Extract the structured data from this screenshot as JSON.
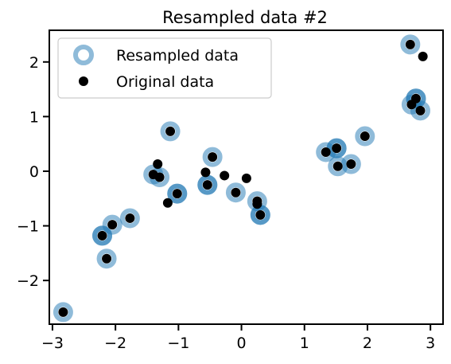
{
  "chart_data": {
    "type": "scatter",
    "title": "Resampled data #2",
    "xlabel": "",
    "ylabel": "",
    "xlim": [
      -3.05,
      3.2
    ],
    "ylim": [
      -2.8,
      2.58
    ],
    "xticks": [
      -3,
      -2,
      -1,
      0,
      1,
      2,
      3
    ],
    "yticks": [
      -2,
      -1,
      0,
      1,
      2
    ],
    "xtick_labels": [
      "−3",
      "−2",
      "−1",
      "0",
      "1",
      "2",
      "3"
    ],
    "ytick_labels": [
      "−2",
      "−1",
      "0",
      "1",
      "2"
    ],
    "grid": false,
    "legend_position": "upper-left",
    "series": [
      {
        "name": "Resampled data",
        "marker": "hollow-ring",
        "color": "#1f77b4",
        "alpha": 0.5,
        "points": [
          {
            "x": -2.83,
            "y": -2.58,
            "count": 1
          },
          {
            "x": -2.21,
            "y": -1.18,
            "count": 2
          },
          {
            "x": -2.14,
            "y": -1.6,
            "count": 1
          },
          {
            "x": -2.05,
            "y": -0.98,
            "count": 1
          },
          {
            "x": -1.77,
            "y": -0.86,
            "count": 1
          },
          {
            "x": -1.4,
            "y": -0.06,
            "count": 1
          },
          {
            "x": -1.3,
            "y": -0.11,
            "count": 1
          },
          {
            "x": -1.13,
            "y": 0.73,
            "count": 1
          },
          {
            "x": -1.02,
            "y": -0.41,
            "count": 2
          },
          {
            "x": -0.54,
            "y": -0.25,
            "count": 2
          },
          {
            "x": -0.46,
            "y": 0.26,
            "count": 1
          },
          {
            "x": -0.09,
            "y": -0.39,
            "count": 1
          },
          {
            "x": 0.25,
            "y": -0.55,
            "count": 1
          },
          {
            "x": 0.3,
            "y": -0.8,
            "count": 2
          },
          {
            "x": 1.34,
            "y": 0.35,
            "count": 1
          },
          {
            "x": 1.51,
            "y": 0.42,
            "count": 2
          },
          {
            "x": 1.53,
            "y": 0.09,
            "count": 1
          },
          {
            "x": 1.74,
            "y": 0.13,
            "count": 1
          },
          {
            "x": 1.96,
            "y": 0.64,
            "count": 1
          },
          {
            "x": 2.68,
            "y": 2.32,
            "count": 1
          },
          {
            "x": 2.7,
            "y": 1.22,
            "count": 1
          },
          {
            "x": 2.77,
            "y": 1.33,
            "count": 2
          },
          {
            "x": 2.84,
            "y": 1.11,
            "count": 1
          }
        ]
      },
      {
        "name": "Original data",
        "marker": "filled-dot",
        "color": "#000000",
        "points": [
          {
            "x": -2.83,
            "y": -2.58
          },
          {
            "x": -2.21,
            "y": -1.18
          },
          {
            "x": -2.14,
            "y": -1.6
          },
          {
            "x": -2.05,
            "y": -0.98
          },
          {
            "x": -1.77,
            "y": -0.86
          },
          {
            "x": -1.4,
            "y": -0.06
          },
          {
            "x": -1.33,
            "y": 0.13
          },
          {
            "x": -1.3,
            "y": -0.11
          },
          {
            "x": -1.17,
            "y": -0.58
          },
          {
            "x": -1.13,
            "y": 0.73
          },
          {
            "x": -1.02,
            "y": -0.41
          },
          {
            "x": -0.57,
            "y": -0.02
          },
          {
            "x": -0.54,
            "y": -0.25
          },
          {
            "x": -0.46,
            "y": 0.26
          },
          {
            "x": -0.27,
            "y": -0.08
          },
          {
            "x": -0.09,
            "y": -0.39
          },
          {
            "x": 0.08,
            "y": -0.13
          },
          {
            "x": 0.25,
            "y": -0.6
          },
          {
            "x": 0.25,
            "y": -0.55
          },
          {
            "x": 0.3,
            "y": -0.8
          },
          {
            "x": 1.34,
            "y": 0.35
          },
          {
            "x": 1.51,
            "y": 0.42
          },
          {
            "x": 1.53,
            "y": 0.09
          },
          {
            "x": 1.74,
            "y": 0.13
          },
          {
            "x": 1.96,
            "y": 0.64
          },
          {
            "x": 2.68,
            "y": 2.32
          },
          {
            "x": 2.7,
            "y": 1.22
          },
          {
            "x": 2.77,
            "y": 1.33
          },
          {
            "x": 2.84,
            "y": 1.11
          },
          {
            "x": 2.88,
            "y": 2.1
          }
        ]
      }
    ]
  }
}
